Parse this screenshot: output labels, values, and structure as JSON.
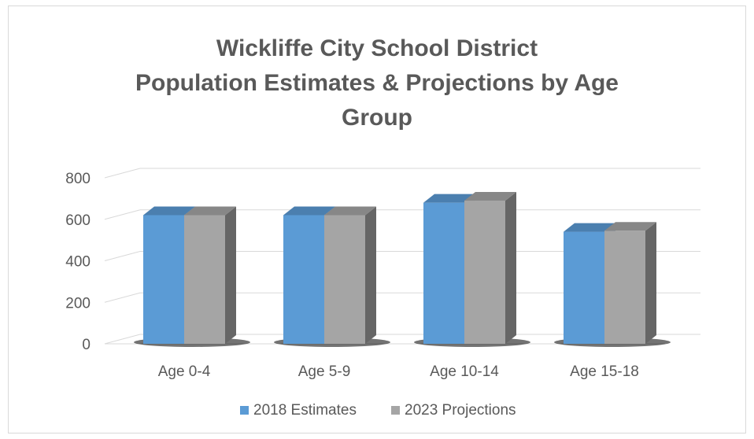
{
  "chart_data": {
    "type": "bar",
    "title": [
      "Wickliffe City School District",
      "Population Estimates & Projections by Age",
      "Group"
    ],
    "categories": [
      "Age 0-4",
      "Age 5-9",
      "Age 10-14",
      "Age 15-18"
    ],
    "series": [
      {
        "name": "2018 Estimates",
        "values": [
          620,
          620,
          680,
          540
        ],
        "color": "#5b9bd5"
      },
      {
        "name": "2023 Projections",
        "values": [
          620,
          620,
          690,
          545
        ],
        "color": "#a5a5a5"
      }
    ],
    "yticks": [
      0,
      200,
      400,
      600,
      800
    ],
    "ylim": [
      0,
      800
    ],
    "grid": true,
    "legend": "bottom"
  }
}
